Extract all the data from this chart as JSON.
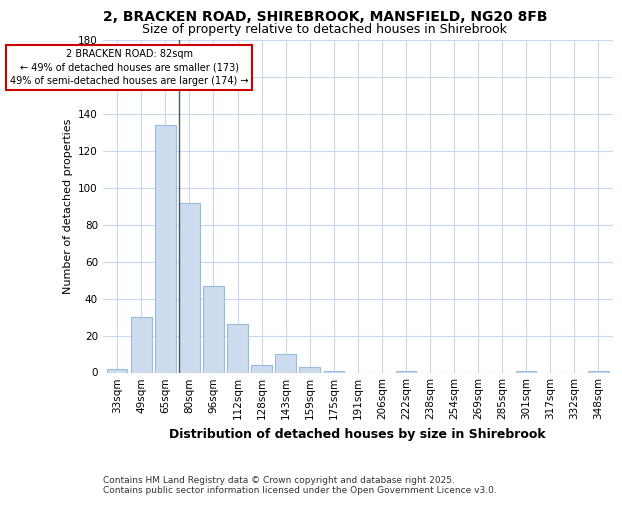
{
  "title_line1": "2, BRACKEN ROAD, SHIREBROOK, MANSFIELD, NG20 8FB",
  "title_line2": "Size of property relative to detached houses in Shirebrook",
  "xlabel": "Distribution of detached houses by size in Shirebrook",
  "ylabel": "Number of detached properties",
  "footer_line1": "Contains HM Land Registry data © Crown copyright and database right 2025.",
  "footer_line2": "Contains public sector information licensed under the Open Government Licence v3.0.",
  "categories": [
    "33sqm",
    "49sqm",
    "65sqm",
    "80sqm",
    "96sqm",
    "112sqm",
    "128sqm",
    "143sqm",
    "159sqm",
    "175sqm",
    "191sqm",
    "206sqm",
    "222sqm",
    "238sqm",
    "254sqm",
    "269sqm",
    "285sqm",
    "301sqm",
    "317sqm",
    "332sqm",
    "348sqm"
  ],
  "values": [
    2,
    30,
    134,
    92,
    47,
    26,
    4,
    10,
    3,
    1,
    0,
    0,
    1,
    0,
    0,
    0,
    0,
    1,
    0,
    0,
    1
  ],
  "bar_color": "#ccdcee",
  "bar_edge_color": "#99bbdd",
  "marker_label_line1": "2 BRACKEN ROAD: 82sqm",
  "marker_label_line2": "← 49% of detached houses are smaller (173)",
  "marker_label_line3": "49% of semi-detached houses are larger (174) →",
  "annotation_box_color": "#ffffff",
  "annotation_box_edge_color": "#cc0000",
  "marker_line_color": "#555555",
  "ylim": [
    0,
    180
  ],
  "yticks": [
    0,
    20,
    40,
    60,
    80,
    100,
    120,
    140,
    160,
    180
  ],
  "background_color": "#ffffff",
  "grid_color": "#c8d8f0",
  "title_fontsize": 10,
  "subtitle_fontsize": 9,
  "ylabel_fontsize": 8,
  "xlabel_fontsize": 9,
  "tick_fontsize": 7.5,
  "footer_fontsize": 6.5
}
